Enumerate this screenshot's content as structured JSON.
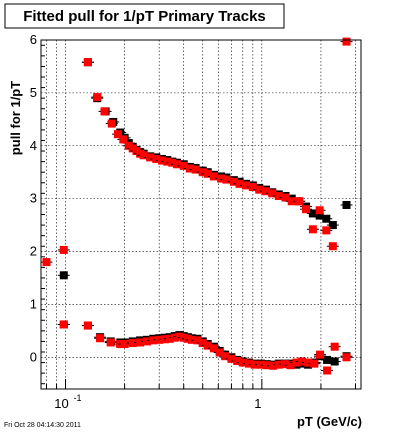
{
  "timestamp": "Fri Oct 28 04:14:30 2011",
  "chart_data": {
    "type": "scatter",
    "title": "Fitted pull for 1/pT  Primary Tracks",
    "xlabel": "pT (GeV/c)",
    "ylabel": "pull for 1/pT",
    "xscale": "log",
    "xlim": [
      0.075,
      3.2
    ],
    "ylim": [
      -0.6,
      6.0
    ],
    "grid": true,
    "y_tick_labels": [
      "0",
      "1",
      "2",
      "3",
      "4",
      "5",
      "6"
    ],
    "x_tick_labels": [
      {
        "base": "10",
        "exp": "-1"
      },
      {
        "base": "1",
        "exp": ""
      }
    ],
    "colors": {
      "black_series": "#000000",
      "red_series": "#ff0000"
    },
    "series": [
      {
        "color": "black",
        "upper": [
          [
            0.098,
            1.55
          ],
          [
            0.13,
            5.58
          ],
          [
            0.145,
            4.9
          ],
          [
            0.16,
            4.65
          ],
          [
            0.175,
            4.45
          ],
          [
            0.19,
            4.25
          ],
          [
            0.2,
            4.15
          ],
          [
            0.21,
            4.05
          ],
          [
            0.22,
            3.98
          ],
          [
            0.23,
            3.92
          ],
          [
            0.24,
            3.88
          ],
          [
            0.25,
            3.85
          ],
          [
            0.27,
            3.8
          ],
          [
            0.29,
            3.78
          ],
          [
            0.31,
            3.75
          ],
          [
            0.33,
            3.73
          ],
          [
            0.35,
            3.7
          ],
          [
            0.37,
            3.68
          ],
          [
            0.4,
            3.65
          ],
          [
            0.43,
            3.6
          ],
          [
            0.46,
            3.58
          ],
          [
            0.5,
            3.53
          ],
          [
            0.53,
            3.5
          ],
          [
            0.57,
            3.45
          ],
          [
            0.62,
            3.42
          ],
          [
            0.66,
            3.4
          ],
          [
            0.72,
            3.35
          ],
          [
            0.77,
            3.32
          ],
          [
            0.83,
            3.28
          ],
          [
            0.9,
            3.25
          ],
          [
            0.97,
            3.2
          ],
          [
            1.05,
            3.17
          ],
          [
            1.13,
            3.12
          ],
          [
            1.22,
            3.08
          ],
          [
            1.32,
            3.05
          ],
          [
            1.42,
            3.0
          ],
          [
            1.55,
            2.95
          ],
          [
            1.68,
            2.85
          ],
          [
            1.82,
            2.72
          ],
          [
            1.97,
            2.68
          ],
          [
            2.13,
            2.62
          ],
          [
            2.3,
            2.5
          ],
          [
            2.7,
            2.88
          ]
        ],
        "lower": [
          [
            0.098,
            0.62
          ],
          [
            0.13,
            0.6
          ],
          [
            0.15,
            0.38
          ],
          [
            0.17,
            0.3
          ],
          [
            0.19,
            0.28
          ],
          [
            0.2,
            0.28
          ],
          [
            0.22,
            0.3
          ],
          [
            0.24,
            0.32
          ],
          [
            0.26,
            0.33
          ],
          [
            0.28,
            0.35
          ],
          [
            0.3,
            0.36
          ],
          [
            0.32,
            0.37
          ],
          [
            0.34,
            0.38
          ],
          [
            0.36,
            0.4
          ],
          [
            0.38,
            0.42
          ],
          [
            0.4,
            0.4
          ],
          [
            0.42,
            0.38
          ],
          [
            0.44,
            0.36
          ],
          [
            0.47,
            0.35
          ],
          [
            0.5,
            0.3
          ],
          [
            0.53,
            0.25
          ],
          [
            0.57,
            0.2
          ],
          [
            0.61,
            0.12
          ],
          [
            0.65,
            0.05
          ],
          [
            0.7,
            0.0
          ],
          [
            0.75,
            -0.05
          ],
          [
            0.8,
            -0.08
          ],
          [
            0.86,
            -0.1
          ],
          [
            0.92,
            -0.12
          ],
          [
            0.99,
            -0.12
          ],
          [
            1.06,
            -0.13
          ],
          [
            1.14,
            -0.14
          ],
          [
            1.22,
            -0.12
          ],
          [
            1.31,
            -0.12
          ],
          [
            1.4,
            -0.12
          ],
          [
            1.5,
            -0.14
          ],
          [
            1.6,
            -0.12
          ],
          [
            1.72,
            -0.14
          ],
          [
            1.85,
            -0.1
          ],
          [
            1.98,
            0.02
          ],
          [
            2.15,
            -0.05
          ],
          [
            2.35,
            -0.08
          ],
          [
            2.7,
            0.02
          ]
        ]
      },
      {
        "color": "red",
        "upper": [
          [
            0.08,
            1.8
          ],
          [
            0.098,
            2.03
          ],
          [
            0.13,
            5.58
          ],
          [
            0.145,
            4.92
          ],
          [
            0.158,
            4.65
          ],
          [
            0.172,
            4.42
          ],
          [
            0.185,
            4.22
          ],
          [
            0.197,
            4.12
          ],
          [
            0.21,
            4.0
          ],
          [
            0.22,
            3.95
          ],
          [
            0.23,
            3.9
          ],
          [
            0.24,
            3.85
          ],
          [
            0.25,
            3.82
          ],
          [
            0.27,
            3.78
          ],
          [
            0.29,
            3.75
          ],
          [
            0.31,
            3.72
          ],
          [
            0.33,
            3.7
          ],
          [
            0.35,
            3.68
          ],
          [
            0.37,
            3.65
          ],
          [
            0.4,
            3.62
          ],
          [
            0.43,
            3.57
          ],
          [
            0.46,
            3.55
          ],
          [
            0.5,
            3.5
          ],
          [
            0.53,
            3.47
          ],
          [
            0.57,
            3.42
          ],
          [
            0.62,
            3.38
          ],
          [
            0.66,
            3.36
          ],
          [
            0.72,
            3.32
          ],
          [
            0.77,
            3.28
          ],
          [
            0.83,
            3.25
          ],
          [
            0.9,
            3.22
          ],
          [
            0.97,
            3.17
          ],
          [
            1.05,
            3.14
          ],
          [
            1.13,
            3.1
          ],
          [
            1.22,
            3.05
          ],
          [
            1.32,
            3.02
          ],
          [
            1.42,
            2.95
          ],
          [
            1.55,
            2.95
          ],
          [
            1.68,
            2.8
          ],
          [
            1.82,
            2.42
          ],
          [
            1.97,
            2.78
          ],
          [
            2.13,
            2.4
          ],
          [
            2.3,
            2.1
          ],
          [
            2.7,
            5.97
          ]
        ],
        "lower": [
          [
            0.098,
            0.62
          ],
          [
            0.13,
            0.6
          ],
          [
            0.15,
            0.36
          ],
          [
            0.17,
            0.28
          ],
          [
            0.19,
            0.25
          ],
          [
            0.2,
            0.25
          ],
          [
            0.22,
            0.27
          ],
          [
            0.24,
            0.28
          ],
          [
            0.26,
            0.3
          ],
          [
            0.28,
            0.32
          ],
          [
            0.3,
            0.33
          ],
          [
            0.32,
            0.34
          ],
          [
            0.34,
            0.35
          ],
          [
            0.36,
            0.37
          ],
          [
            0.38,
            0.39
          ],
          [
            0.4,
            0.37
          ],
          [
            0.42,
            0.35
          ],
          [
            0.44,
            0.33
          ],
          [
            0.47,
            0.32
          ],
          [
            0.5,
            0.27
          ],
          [
            0.53,
            0.22
          ],
          [
            0.57,
            0.17
          ],
          [
            0.61,
            0.09
          ],
          [
            0.65,
            0.02
          ],
          [
            0.7,
            -0.03
          ],
          [
            0.75,
            -0.07
          ],
          [
            0.8,
            -0.1
          ],
          [
            0.86,
            -0.12
          ],
          [
            0.92,
            -0.14
          ],
          [
            0.99,
            -0.14
          ],
          [
            1.06,
            -0.15
          ],
          [
            1.14,
            -0.16
          ],
          [
            1.22,
            -0.14
          ],
          [
            1.31,
            -0.13
          ],
          [
            1.4,
            -0.15
          ],
          [
            1.5,
            -0.1
          ],
          [
            1.6,
            -0.08
          ],
          [
            1.72,
            -0.1
          ],
          [
            1.85,
            -0.12
          ],
          [
            1.98,
            0.05
          ],
          [
            2.15,
            -0.25
          ],
          [
            2.35,
            0.2
          ],
          [
            2.7,
            0.0
          ]
        ]
      }
    ]
  }
}
